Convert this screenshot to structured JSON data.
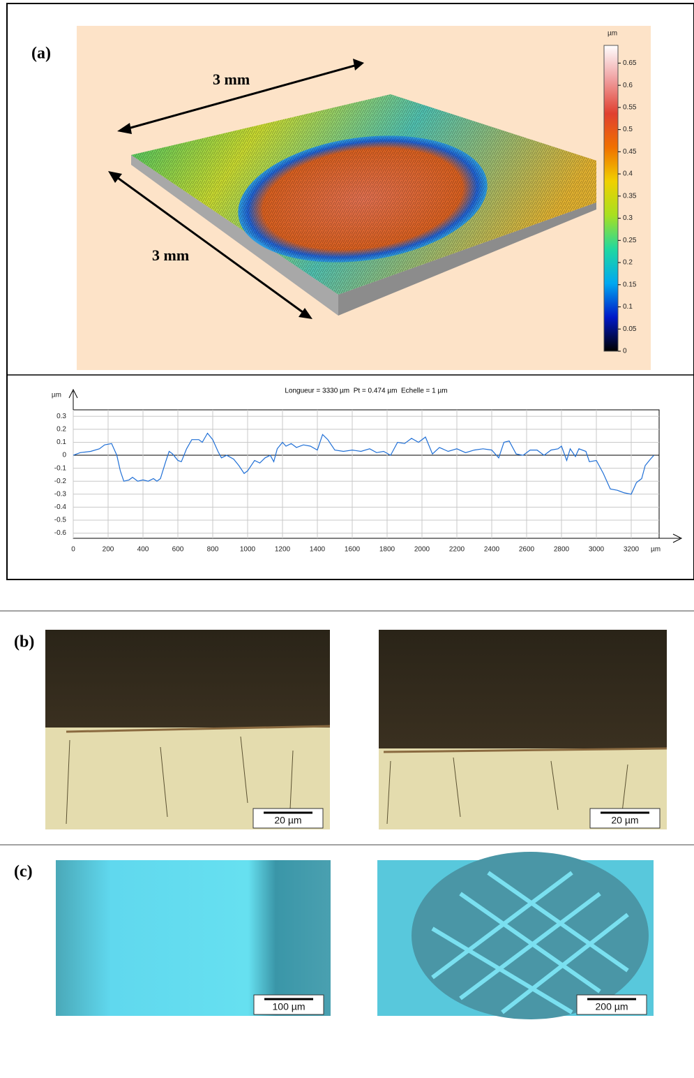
{
  "panels": {
    "a": {
      "label": "(a)",
      "arrow_labels": [
        "3 mm",
        "3 mm"
      ]
    },
    "b": {
      "label": "(b)",
      "scale_bars": [
        "20 µm",
        "20 µm"
      ]
    },
    "c": {
      "label": "(c)",
      "scale_bars": [
        "100 µm",
        "200 µm"
      ]
    }
  },
  "chart_data": [
    {
      "type": "colorbar",
      "y_label": "µm",
      "ylim": [
        0,
        0.69
      ],
      "yticks": [
        0,
        0.05,
        0.1,
        0.15,
        0.2,
        0.25,
        0.3,
        0.35,
        0.4,
        0.45,
        0.5,
        0.55,
        0.6,
        0.65
      ],
      "colormap": [
        "#000000",
        "#0018c8",
        "#00a8f0",
        "#20d8a0",
        "#a8e020",
        "#f0d000",
        "#f07000",
        "#e04030",
        "#f0a0a0",
        "#ffffff"
      ]
    },
    {
      "type": "line",
      "title": "Longueur = 3330 µm  Pt = 0.474 µm  Echelle = 1 µm",
      "y_label": "µm",
      "x_label": "µm",
      "x": [
        0,
        40,
        100,
        150,
        180,
        220,
        250,
        270,
        290,
        320,
        340,
        370,
        400,
        430,
        460,
        480,
        500,
        530,
        550,
        570,
        600,
        620,
        650,
        680,
        720,
        740,
        770,
        800,
        830,
        850,
        880,
        920,
        950,
        980,
        1000,
        1040,
        1070,
        1100,
        1130,
        1150,
        1170,
        1200,
        1220,
        1250,
        1280,
        1320,
        1360,
        1400,
        1430,
        1460,
        1500,
        1550,
        1600,
        1650,
        1700,
        1740,
        1780,
        1820,
        1860,
        1900,
        1940,
        1980,
        2020,
        2060,
        2100,
        2150,
        2200,
        2250,
        2300,
        2350,
        2400,
        2440,
        2470,
        2500,
        2540,
        2580,
        2620,
        2660,
        2700,
        2740,
        2780,
        2800,
        2830,
        2850,
        2880,
        2900,
        2940,
        2960,
        3000,
        3040,
        3080,
        3120,
        3160,
        3200,
        3230,
        3260,
        3280,
        3310,
        3330
      ],
      "series": [
        {
          "color": "#1f6fd6",
          "values": [
            0,
            0.02,
            0.03,
            0.05,
            0.08,
            0.09,
            0,
            -0.12,
            -0.2,
            -0.19,
            -0.17,
            -0.2,
            -0.19,
            -0.2,
            -0.18,
            -0.2,
            -0.18,
            -0.05,
            0.03,
            0.01,
            -0.04,
            -0.05,
            0.05,
            0.12,
            0.12,
            0.1,
            0.17,
            0.12,
            0.03,
            -0.02,
            0,
            -0.03,
            -0.08,
            -0.14,
            -0.12,
            -0.04,
            -0.06,
            -0.02,
            0,
            -0.05,
            0.05,
            0.1,
            0.07,
            0.09,
            0.06,
            0.08,
            0.07,
            0.04,
            0.16,
            0.12,
            0.04,
            0.03,
            0.04,
            0.03,
            0.05,
            0.02,
            0.03,
            0,
            0.1,
            0.09,
            0.13,
            0.1,
            0.14,
            0.01,
            0.06,
            0.03,
            0.05,
            0.02,
            0.04,
            0.05,
            0.04,
            -0.02,
            0.1,
            0.11,
            0.01,
            0,
            0.04,
            0.04,
            0,
            0.04,
            0.05,
            0.07,
            -0.04,
            0.05,
            -0.01,
            0.05,
            0.03,
            -0.05,
            -0.04,
            -0.14,
            -0.26,
            -0.27,
            -0.29,
            -0.3,
            -0.21,
            -0.18,
            -0.08,
            -0.03,
            0
          ]
        }
      ],
      "xlim": [
        0,
        3360
      ],
      "xticks": [
        0,
        200,
        400,
        600,
        800,
        1000,
        1200,
        1400,
        1600,
        1800,
        2000,
        2200,
        2400,
        2600,
        2800,
        3000,
        3200
      ],
      "ylim": [
        -0.64,
        0.35
      ],
      "yticks": [
        0.3,
        0.2,
        0.1,
        0,
        -0.1,
        -0.2,
        -0.3,
        -0.4,
        -0.5,
        -0.6
      ],
      "grid": true
    }
  ]
}
